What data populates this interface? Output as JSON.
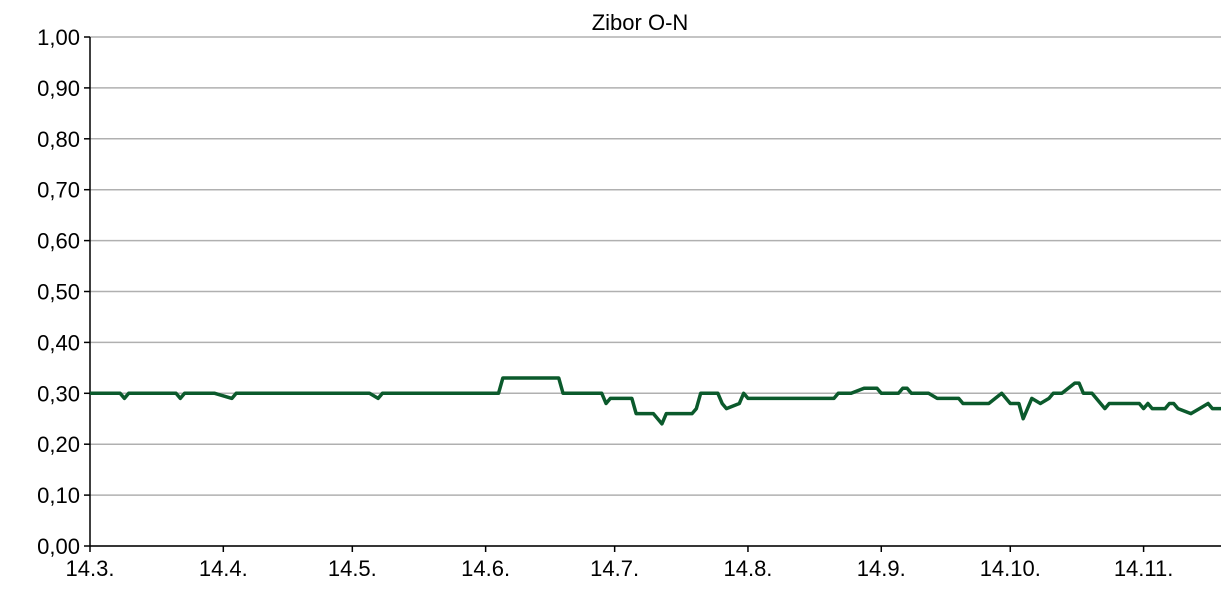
{
  "chart_data": {
    "type": "line",
    "title": "Zibor O-N",
    "x": [
      0,
      7,
      8,
      9,
      20,
      21,
      22,
      29,
      33,
      34,
      65,
      67,
      68,
      95,
      96,
      109,
      110,
      119,
      120,
      121,
      126,
      127,
      131,
      133,
      134,
      140,
      141,
      142,
      146,
      147,
      148,
      151,
      152,
      153,
      173,
      174,
      177,
      180,
      183,
      184,
      188,
      189,
      190,
      191,
      195,
      197,
      202,
      203,
      209,
      212,
      214,
      216,
      217,
      219,
      221,
      223,
      224,
      226,
      229,
      230,
      231,
      233,
      236,
      237,
      244,
      245,
      246,
      247,
      250,
      251,
      252,
      253,
      256,
      258,
      260,
      261,
      263
    ],
    "series": [
      {
        "color": "#0b5a2c",
        "values": [
          0.3,
          0.3,
          0.29,
          0.3,
          0.3,
          0.29,
          0.3,
          0.3,
          0.29,
          0.3,
          0.3,
          0.29,
          0.3,
          0.3,
          0.33,
          0.33,
          0.3,
          0.3,
          0.28,
          0.29,
          0.29,
          0.26,
          0.26,
          0.24,
          0.26,
          0.26,
          0.27,
          0.3,
          0.3,
          0.28,
          0.27,
          0.28,
          0.3,
          0.29,
          0.29,
          0.3,
          0.3,
          0.31,
          0.31,
          0.3,
          0.3,
          0.31,
          0.31,
          0.3,
          0.3,
          0.29,
          0.29,
          0.28,
          0.28,
          0.3,
          0.28,
          0.28,
          0.25,
          0.29,
          0.28,
          0.29,
          0.3,
          0.3,
          0.32,
          0.32,
          0.3,
          0.3,
          0.27,
          0.28,
          0.28,
          0.27,
          0.28,
          0.27,
          0.27,
          0.28,
          0.28,
          0.27,
          0.26,
          0.27,
          0.28,
          0.27,
          0.27
        ]
      }
    ],
    "xlim": [
      0,
      263
    ],
    "xticks": [
      {
        "value": 0,
        "label": "14.3."
      },
      {
        "value": 31,
        "label": "14.4."
      },
      {
        "value": 61,
        "label": "14.5."
      },
      {
        "value": 92,
        "label": "14.6."
      },
      {
        "value": 122,
        "label": "14.7."
      },
      {
        "value": 153,
        "label": "14.8."
      },
      {
        "value": 184,
        "label": "14.9."
      },
      {
        "value": 214,
        "label": "14.10."
      },
      {
        "value": 245,
        "label": "14.11."
      }
    ],
    "ylim": [
      0,
      1
    ],
    "yticks": [
      {
        "value": 0,
        "label": "0,00"
      },
      {
        "value": 0.1,
        "label": "0,10"
      },
      {
        "value": 0.2,
        "label": "0,20"
      },
      {
        "value": 0.3,
        "label": "0,30"
      },
      {
        "value": 0.4,
        "label": "0,40"
      },
      {
        "value": 0.5,
        "label": "0,50"
      },
      {
        "value": 0.6,
        "label": "0,60"
      },
      {
        "value": 0.7,
        "label": "0,70"
      },
      {
        "value": 0.8,
        "label": "0,80"
      },
      {
        "value": 0.9,
        "label": "0,90"
      },
      {
        "value": 1,
        "label": "1,00"
      }
    ],
    "grid": true
  }
}
